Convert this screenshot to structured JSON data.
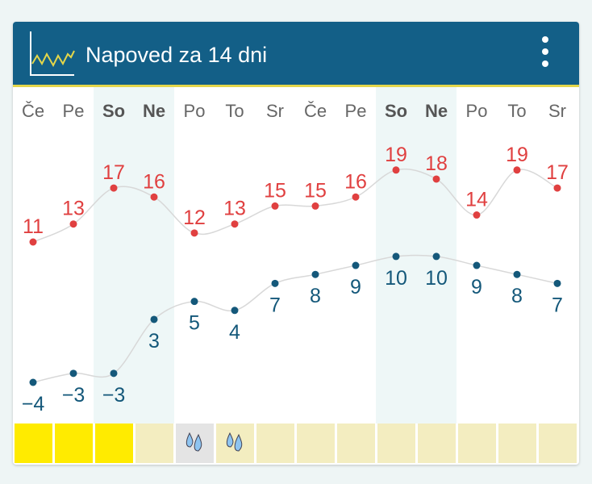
{
  "header": {
    "title": "Napoved za 14 dni",
    "logo_icon": "line-chart-icon",
    "menu_icon": "more-vertical-icon"
  },
  "colors": {
    "header": "#135f87",
    "max": "#e04040",
    "min": "#14587a",
    "weekend": "#eef7f7",
    "sun": "#ffeb00",
    "pale": "#f3edc0",
    "rain_bg": "#e4e4e4"
  },
  "chart_data": {
    "type": "line",
    "categories": [
      "Če",
      "Pe",
      "So",
      "Ne",
      "Po",
      "To",
      "Sr",
      "Če",
      "Pe",
      "So",
      "Ne",
      "Po",
      "To",
      "Sr"
    ],
    "weekend": [
      false,
      false,
      true,
      true,
      false,
      false,
      false,
      false,
      false,
      true,
      true,
      false,
      false,
      false
    ],
    "series": [
      {
        "values": [
          11,
          13,
          17,
          16,
          12,
          13,
          15,
          15,
          16,
          19,
          18,
          14,
          19,
          17
        ]
      },
      {
        "values": [
          -4,
          -3,
          -3,
          3,
          5,
          4,
          7,
          8,
          9,
          10,
          10,
          9,
          8,
          7
        ]
      }
    ],
    "conditions": [
      "sun",
      "sun",
      "sun",
      "pale",
      "rain",
      "rain-pale",
      "pale",
      "pale",
      "pale",
      "pale",
      "pale",
      "pale",
      "pale",
      "pale"
    ]
  }
}
